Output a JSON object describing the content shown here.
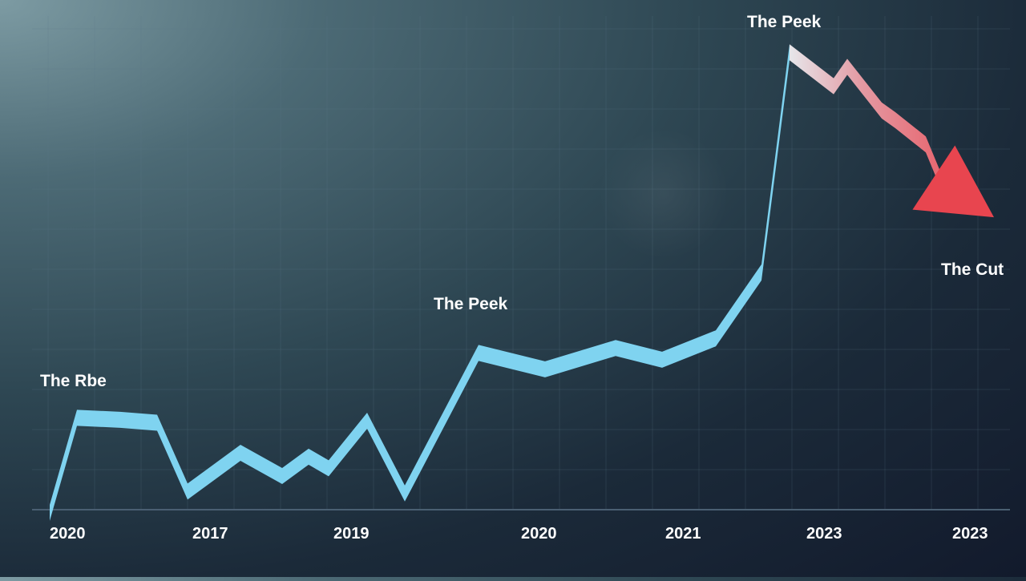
{
  "chart_data": {
    "type": "line",
    "title": "",
    "xlabel": "",
    "ylabel": "",
    "grid": true,
    "legend": "none",
    "x_tick_labels": [
      "2020",
      "2017",
      "2019",
      "2020",
      "2021",
      "2023",
      "2023"
    ],
    "series": [
      {
        "values": [
          0,
          98,
          96,
          93,
          22,
          62,
          38,
          58,
          46,
          95,
          20,
          165,
          148,
          170,
          158,
          180,
          248,
          475,
          440,
          460,
          415,
          405,
          380,
          320,
          290
        ],
        "color_rise": "#7fd3f0",
        "color_fall": "#e8454f"
      }
    ],
    "annotations": [
      {
        "text": "The Rbe",
        "point_index": 1
      },
      {
        "text": "The Peek",
        "point_index": 11
      },
      {
        "text": "The Peek",
        "point_index": 17
      },
      {
        "text": "The Cut",
        "point_index": 23
      }
    ],
    "colors": {
      "rise": "#7fd3f0",
      "fall": "#e8454f",
      "grid": "#5d7888"
    }
  }
}
